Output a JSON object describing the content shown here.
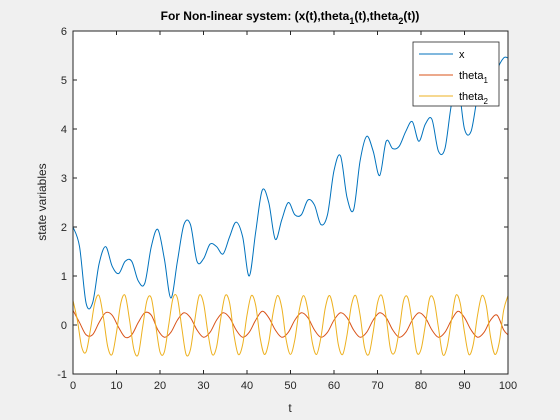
{
  "colors": {
    "x": "#0072BD",
    "theta1": "#D95319",
    "theta2": "#EDB120"
  },
  "chart_data": {
    "type": "line",
    "title": {
      "main": "For Non-linear system: (x(t),theta",
      "sub1": "1",
      "mid": "(t),theta",
      "sub2": "2",
      "end": "(t))"
    },
    "xlabel": "t",
    "ylabel": "state variables",
    "xlim": [
      0,
      100
    ],
    "ylim": [
      -1,
      6
    ],
    "xticks": [
      "0",
      "10",
      "20",
      "30",
      "40",
      "50",
      "60",
      "70",
      "80",
      "90",
      "100"
    ],
    "yticks": [
      "-1",
      "0",
      "1",
      "2",
      "3",
      "4",
      "5",
      "6"
    ],
    "legend_position": "top-right",
    "series": [
      {
        "name": "x",
        "name_sub": "",
        "x": [
          0,
          1.5,
          3,
          4.5,
          6,
          7.5,
          9,
          10.5,
          12,
          13.5,
          15,
          16.5,
          18,
          19.5,
          21,
          22.5,
          24,
          25.5,
          27,
          28.5,
          30,
          31.5,
          33,
          34.5,
          36,
          37.5,
          39,
          40.5,
          42,
          43.5,
          45,
          46.5,
          48,
          49.5,
          51,
          52.5,
          54,
          55.5,
          57,
          58.5,
          60,
          61.5,
          63,
          64.5,
          66,
          67.5,
          69,
          70.5,
          72,
          73.5,
          75,
          76.5,
          78,
          79.5,
          81,
          82.5,
          84,
          85.5,
          87,
          88.5,
          90,
          91.5,
          93,
          94.5,
          96,
          97.5,
          99,
          100
        ],
        "y": [
          2.0,
          1.6,
          0.45,
          0.45,
          1.25,
          1.6,
          1.2,
          1.05,
          1.3,
          1.3,
          0.9,
          0.85,
          1.6,
          1.95,
          1.35,
          0.55,
          1.3,
          2.05,
          2.05,
          1.3,
          1.35,
          1.65,
          1.6,
          1.45,
          1.8,
          2.1,
          1.8,
          1.0,
          1.9,
          2.75,
          2.5,
          1.75,
          2.15,
          2.5,
          2.25,
          2.25,
          2.55,
          2.45,
          2.05,
          2.25,
          3.15,
          3.45,
          2.6,
          2.35,
          3.35,
          3.85,
          3.55,
          3.05,
          3.75,
          3.6,
          3.65,
          3.95,
          4.15,
          3.75,
          4.1,
          4.2,
          3.55,
          3.6,
          4.5,
          4.9,
          4.0,
          3.95,
          4.65,
          4.95,
          4.7,
          5.2,
          5.45,
          5.45
        ]
      },
      {
        "name": "theta",
        "name_sub": "1",
        "x": [
          0,
          1.5,
          3,
          4.5,
          6,
          7.5,
          9,
          10.5,
          12,
          13.5,
          15,
          16.5,
          18,
          19.5,
          21,
          22.5,
          24,
          25.5,
          27,
          28.5,
          30,
          31.5,
          33,
          34.5,
          36,
          37.5,
          39,
          40.5,
          42,
          43.5,
          45,
          46.5,
          48,
          49.5,
          51,
          52.5,
          54,
          55.5,
          57,
          58.5,
          60,
          61.5,
          63,
          64.5,
          66,
          67.5,
          69,
          70.5,
          72,
          73.5,
          75,
          76.5,
          78,
          79.5,
          81,
          82.5,
          84,
          85.5,
          87,
          88.5,
          90,
          91.5,
          93,
          94.5,
          96,
          97.5,
          99,
          100
        ],
        "y": [
          0.3,
          0.05,
          -0.2,
          -0.2,
          0.05,
          0.25,
          0.2,
          -0.05,
          -0.25,
          -0.2,
          0.05,
          0.25,
          0.2,
          -0.1,
          -0.25,
          -0.15,
          0.1,
          0.25,
          0.15,
          -0.1,
          -0.25,
          -0.15,
          0.1,
          0.25,
          0.15,
          -0.1,
          -0.25,
          -0.15,
          0.1,
          0.28,
          0.15,
          -0.1,
          -0.25,
          -0.15,
          0.1,
          0.25,
          0.15,
          -0.1,
          -0.25,
          -0.15,
          0.1,
          0.25,
          0.15,
          -0.1,
          -0.25,
          -0.15,
          0.1,
          0.25,
          0.15,
          -0.1,
          -0.25,
          -0.15,
          0.1,
          0.25,
          0.15,
          -0.1,
          -0.25,
          -0.15,
          0.1,
          0.28,
          0.15,
          -0.1,
          -0.25,
          -0.15,
          0.1,
          0.2,
          -0.1,
          -0.2
        ]
      },
      {
        "name": "theta",
        "name_sub": "2",
        "x": [
          0,
          1,
          2,
          3,
          4,
          5,
          6,
          7,
          8,
          9,
          10,
          11,
          12,
          13,
          14,
          15,
          16,
          17,
          18,
          19,
          20,
          21,
          22,
          23,
          24,
          25,
          26,
          27,
          28,
          29,
          30,
          31,
          32,
          33,
          34,
          35,
          36,
          37,
          38,
          39,
          40,
          41,
          42,
          43,
          44,
          45,
          46,
          47,
          48,
          49,
          50,
          51,
          52,
          53,
          54,
          55,
          56,
          57,
          58,
          59,
          60,
          61,
          62,
          63,
          64,
          65,
          66,
          67,
          68,
          69,
          70,
          71,
          72,
          73,
          74,
          75,
          76,
          77,
          78,
          79,
          80,
          81,
          82,
          83,
          84,
          85,
          86,
          87,
          88,
          89,
          90,
          91,
          92,
          93,
          94,
          95,
          96,
          97,
          98,
          99,
          100
        ],
        "y": [
          0.5,
          0.1,
          -0.45,
          -0.55,
          -0.1,
          0.45,
          0.6,
          0.15,
          -0.45,
          -0.6,
          -0.15,
          0.45,
          0.6,
          0.1,
          -0.5,
          -0.6,
          -0.05,
          0.5,
          0.55,
          0.0,
          -0.55,
          -0.55,
          0.0,
          0.55,
          0.55,
          -0.05,
          -0.6,
          -0.5,
          0.1,
          0.6,
          0.45,
          -0.15,
          -0.6,
          -0.45,
          0.15,
          0.6,
          0.45,
          -0.2,
          -0.6,
          -0.4,
          0.2,
          0.6,
          0.4,
          -0.25,
          -0.6,
          -0.35,
          0.25,
          0.6,
          0.35,
          -0.3,
          -0.6,
          -0.3,
          0.3,
          0.6,
          0.3,
          -0.35,
          -0.6,
          -0.25,
          0.35,
          0.6,
          0.25,
          -0.4,
          -0.6,
          -0.2,
          0.4,
          0.6,
          0.2,
          -0.45,
          -0.6,
          -0.15,
          0.45,
          0.6,
          0.15,
          -0.5,
          -0.55,
          -0.1,
          0.5,
          0.55,
          0.05,
          -0.55,
          -0.5,
          0.0,
          0.55,
          0.5,
          -0.05,
          -0.6,
          -0.45,
          0.1,
          0.6,
          0.45,
          -0.15,
          -0.6,
          -0.4,
          0.2,
          0.6,
          0.4,
          -0.25,
          -0.6,
          -0.35,
          0.3,
          0.6
        ]
      }
    ]
  }
}
